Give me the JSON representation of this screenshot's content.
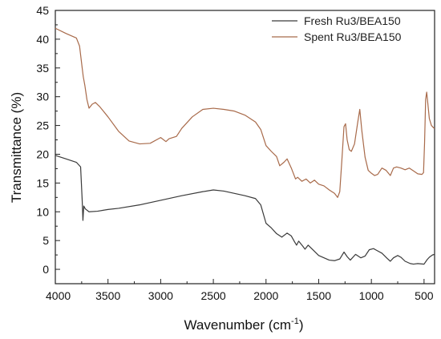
{
  "chart_data": {
    "type": "line",
    "title": "",
    "xlabel": "Wavenumber (cm",
    "xlabel_sup": "-1",
    "xlabel_end": ")",
    "ylabel": "Transmittance (%)",
    "xlim": [
      4000,
      400
    ],
    "ylim": [
      -2.5,
      45
    ],
    "x_reversed": true,
    "grid": false,
    "legend_position": "top-right",
    "x_ticks": [
      4000,
      3500,
      3000,
      2500,
      2000,
      1500,
      1000,
      500
    ],
    "x_tick_labels": [
      "4000",
      "3500",
      "3000",
      "2500",
      "2000",
      "1500",
      "1000",
      "500"
    ],
    "y_ticks": [
      0,
      5,
      10,
      15,
      20,
      25,
      30,
      35,
      40,
      45
    ],
    "y_tick_labels": [
      "0",
      "5",
      "10",
      "15",
      "20",
      "25",
      "30",
      "35",
      "40",
      "45"
    ],
    "series": [
      {
        "name": "Fresh Ru3/BEA150",
        "color": "#3a3a3a",
        "points": [
          [
            4000,
            19.8
          ],
          [
            3900,
            19.2
          ],
          [
            3800,
            18.6
          ],
          [
            3760,
            17.8
          ],
          [
            3745,
            12.0
          ],
          [
            3738,
            8.5
          ],
          [
            3730,
            11.0
          ],
          [
            3715,
            10.5
          ],
          [
            3680,
            10.0
          ],
          [
            3600,
            10.1
          ],
          [
            3500,
            10.4
          ],
          [
            3400,
            10.6
          ],
          [
            3200,
            11.2
          ],
          [
            3000,
            12.0
          ],
          [
            2800,
            12.8
          ],
          [
            2600,
            13.5
          ],
          [
            2500,
            13.8
          ],
          [
            2400,
            13.6
          ],
          [
            2300,
            13.2
          ],
          [
            2200,
            12.8
          ],
          [
            2100,
            12.3
          ],
          [
            2050,
            11.2
          ],
          [
            2000,
            8.0
          ],
          [
            1950,
            7.2
          ],
          [
            1900,
            6.2
          ],
          [
            1850,
            5.6
          ],
          [
            1800,
            6.3
          ],
          [
            1760,
            5.8
          ],
          [
            1730,
            4.8
          ],
          [
            1710,
            4.2
          ],
          [
            1690,
            4.9
          ],
          [
            1650,
            4.0
          ],
          [
            1630,
            3.5
          ],
          [
            1600,
            4.2
          ],
          [
            1550,
            3.3
          ],
          [
            1500,
            2.4
          ],
          [
            1450,
            2.0
          ],
          [
            1400,
            1.6
          ],
          [
            1350,
            1.5
          ],
          [
            1300,
            1.8
          ],
          [
            1260,
            3.0
          ],
          [
            1230,
            2.2
          ],
          [
            1200,
            1.6
          ],
          [
            1150,
            2.6
          ],
          [
            1100,
            2.0
          ],
          [
            1060,
            2.3
          ],
          [
            1020,
            3.4
          ],
          [
            980,
            3.6
          ],
          [
            950,
            3.3
          ],
          [
            900,
            2.8
          ],
          [
            850,
            1.9
          ],
          [
            820,
            1.4
          ],
          [
            790,
            2.0
          ],
          [
            750,
            2.4
          ],
          [
            720,
            2.1
          ],
          [
            680,
            1.4
          ],
          [
            630,
            1.0
          ],
          [
            600,
            0.9
          ],
          [
            560,
            1.0
          ],
          [
            500,
            0.9
          ],
          [
            470,
            1.7
          ],
          [
            450,
            2.1
          ],
          [
            420,
            2.5
          ],
          [
            400,
            2.6
          ]
        ]
      },
      {
        "name": "Spent Ru3/BEA150",
        "color": "#a86a4a",
        "points": [
          [
            4000,
            41.9
          ],
          [
            3900,
            41.0
          ],
          [
            3800,
            40.2
          ],
          [
            3770,
            38.8
          ],
          [
            3745,
            35.0
          ],
          [
            3735,
            33.5
          ],
          [
            3720,
            32.0
          ],
          [
            3700,
            29.5
          ],
          [
            3680,
            28.0
          ],
          [
            3650,
            28.7
          ],
          [
            3620,
            29.0
          ],
          [
            3580,
            28.3
          ],
          [
            3500,
            26.5
          ],
          [
            3400,
            24.0
          ],
          [
            3300,
            22.3
          ],
          [
            3200,
            21.8
          ],
          [
            3100,
            21.9
          ],
          [
            3000,
            22.9
          ],
          [
            2950,
            22.2
          ],
          [
            2920,
            22.7
          ],
          [
            2850,
            23.1
          ],
          [
            2800,
            24.5
          ],
          [
            2700,
            26.5
          ],
          [
            2600,
            27.8
          ],
          [
            2500,
            28.0
          ],
          [
            2400,
            27.8
          ],
          [
            2300,
            27.5
          ],
          [
            2200,
            26.8
          ],
          [
            2100,
            25.6
          ],
          [
            2050,
            24.3
          ],
          [
            2000,
            21.5
          ],
          [
            1950,
            20.5
          ],
          [
            1900,
            19.6
          ],
          [
            1870,
            18.0
          ],
          [
            1830,
            18.6
          ],
          [
            1800,
            19.2
          ],
          [
            1760,
            17.6
          ],
          [
            1720,
            15.7
          ],
          [
            1700,
            16.0
          ],
          [
            1660,
            15.3
          ],
          [
            1620,
            15.7
          ],
          [
            1580,
            15.0
          ],
          [
            1540,
            15.5
          ],
          [
            1500,
            14.8
          ],
          [
            1450,
            14.5
          ],
          [
            1400,
            13.8
          ],
          [
            1350,
            13.2
          ],
          [
            1320,
            12.5
          ],
          [
            1300,
            13.5
          ],
          [
            1280,
            19.0
          ],
          [
            1260,
            24.8
          ],
          [
            1245,
            25.3
          ],
          [
            1230,
            22.5
          ],
          [
            1210,
            20.8
          ],
          [
            1190,
            20.5
          ],
          [
            1160,
            21.8
          ],
          [
            1130,
            25.5
          ],
          [
            1110,
            27.8
          ],
          [
            1090,
            24.0
          ],
          [
            1060,
            19.5
          ],
          [
            1030,
            17.2
          ],
          [
            1000,
            16.7
          ],
          [
            970,
            16.3
          ],
          [
            940,
            16.5
          ],
          [
            900,
            17.6
          ],
          [
            860,
            17.2
          ],
          [
            820,
            16.3
          ],
          [
            790,
            17.6
          ],
          [
            760,
            17.8
          ],
          [
            720,
            17.6
          ],
          [
            680,
            17.3
          ],
          [
            640,
            17.6
          ],
          [
            600,
            17.1
          ],
          [
            560,
            16.6
          ],
          [
            520,
            16.5
          ],
          [
            505,
            16.8
          ],
          [
            495,
            22.0
          ],
          [
            485,
            29.5
          ],
          [
            475,
            30.8
          ],
          [
            465,
            29.0
          ],
          [
            450,
            26.2
          ],
          [
            430,
            25.0
          ],
          [
            410,
            24.6
          ],
          [
            400,
            24.5
          ]
        ]
      }
    ]
  }
}
